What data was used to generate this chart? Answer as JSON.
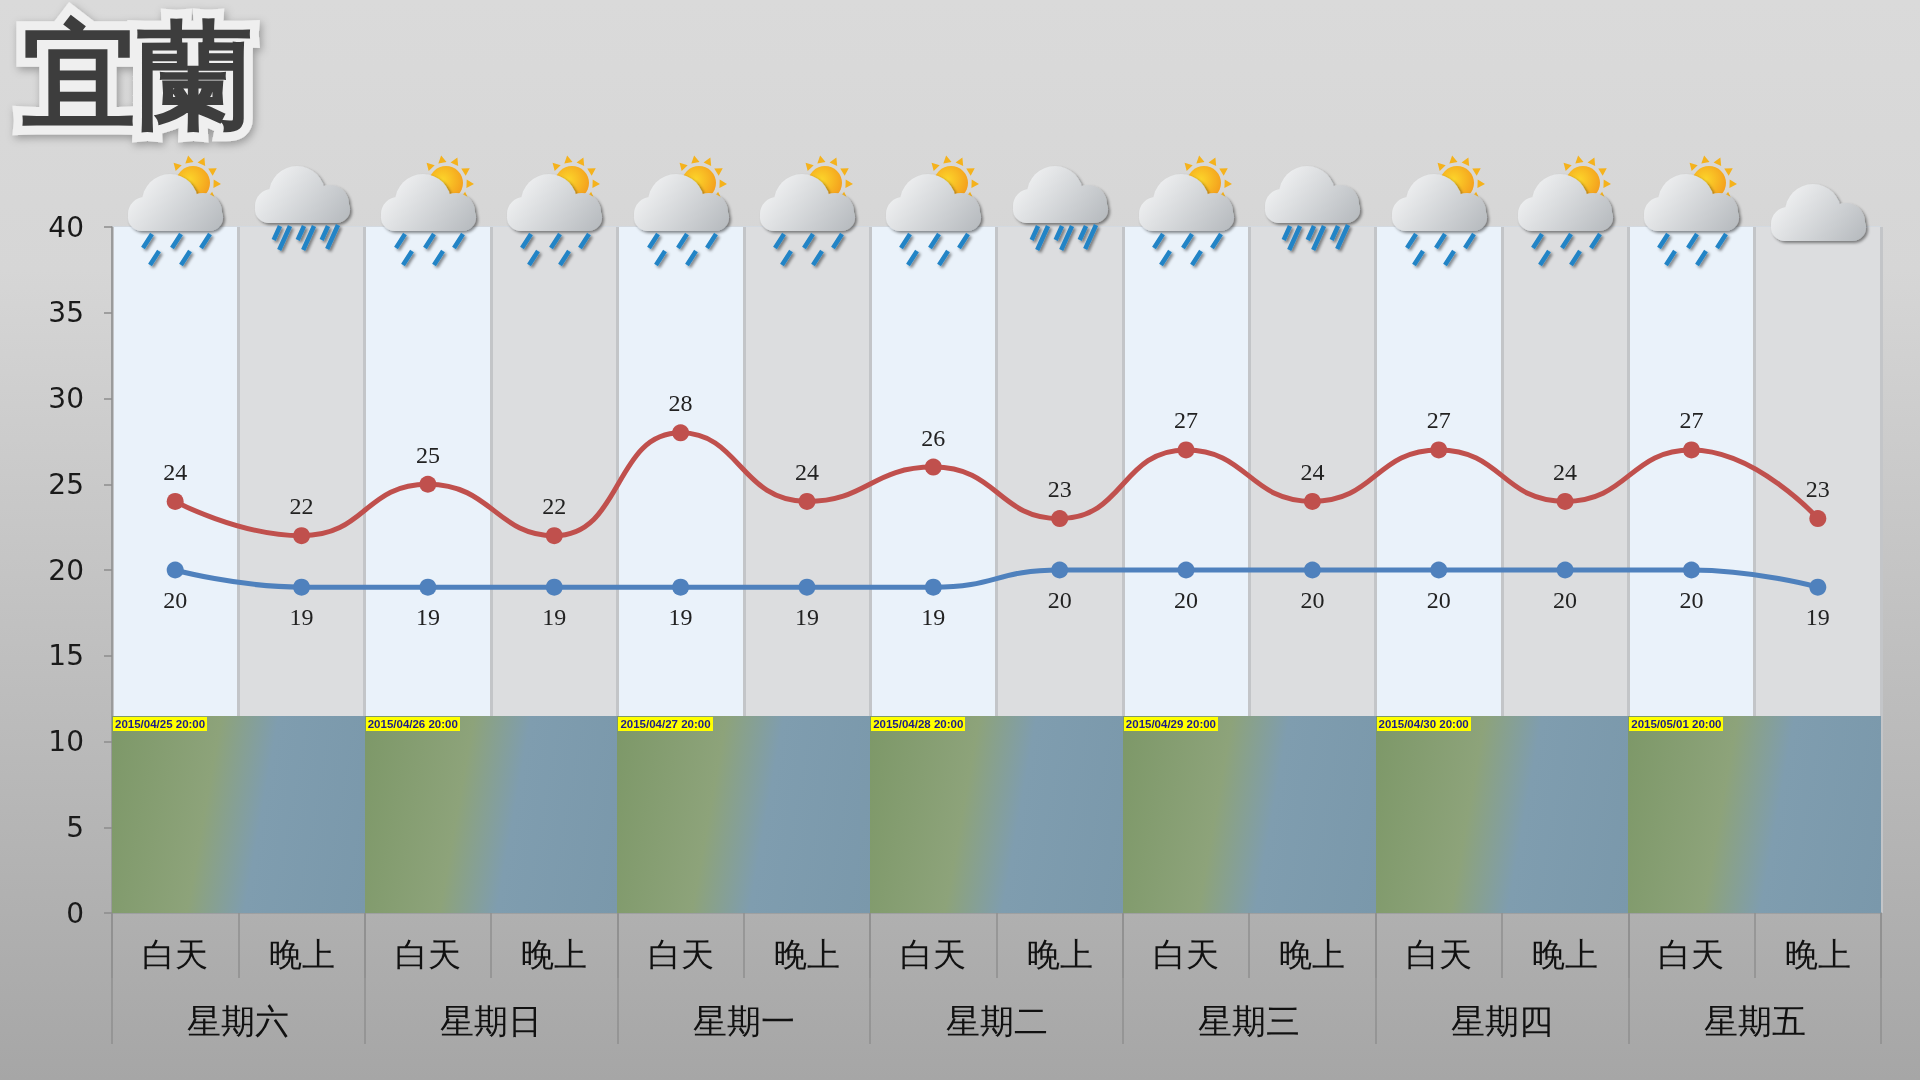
{
  "chart_data": {
    "type": "line",
    "title": "宜蘭",
    "categories": [
      "白天",
      "晚上",
      "白天",
      "晚上",
      "白天",
      "晚上",
      "白天",
      "晚上",
      "白天",
      "晚上",
      "白天",
      "晚上",
      "白天",
      "晚上"
    ],
    "series": [
      {
        "color": "#c0504d",
        "values": [
          24,
          22,
          25,
          22,
          28,
          24,
          26,
          23,
          27,
          24,
          27,
          24,
          27,
          23
        ]
      },
      {
        "color": "#4f81bd",
        "values": [
          20,
          19,
          19,
          19,
          19,
          19,
          19,
          20,
          20,
          20,
          20,
          20,
          20,
          19
        ]
      }
    ],
    "ylim": [
      0,
      40
    ],
    "yticks": [
      0,
      5,
      10,
      15,
      20,
      25,
      30,
      35,
      40
    ],
    "grid": true,
    "marker": "circle",
    "line_style": "solid",
    "data_labels": true,
    "annotations": [
      "星期六",
      "星期日",
      "星期一",
      "星期二",
      "星期三",
      "星期四",
      "星期五",
      "2015/04/25 20:00",
      "2015/04/26 20:00",
      "2015/04/27 20:00",
      "2015/04/28 20:00",
      "2015/04/29 20:00",
      "2015/04/30 20:00",
      "2015/05/01 20:00"
    ]
  }
}
